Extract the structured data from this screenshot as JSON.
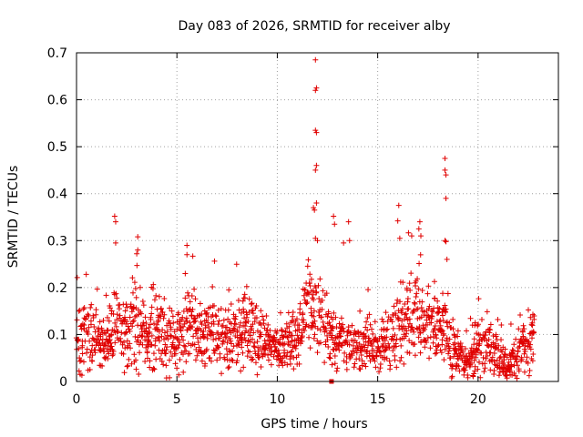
{
  "chart_data": {
    "type": "scatter",
    "title": "Day 083 of 2026, SRMTID for receiver alby",
    "xlabel": "GPS time / hours",
    "ylabel": "SRMTID / TECUs",
    "xlim": [
      0,
      24
    ],
    "ylim": [
      0,
      0.7
    ],
    "xticks": [
      0,
      5,
      10,
      15,
      20
    ],
    "xtick_labels": [
      "0",
      "5",
      "10",
      "15",
      "20"
    ],
    "yticks": [
      0,
      0.1,
      0.2,
      0.3,
      0.4,
      0.5,
      0.6,
      0.7
    ],
    "ytick_labels": [
      "0",
      "0.1",
      "0.2",
      "0.3",
      "0.4",
      "0.5",
      "0.6",
      "0.7"
    ],
    "grid": true,
    "legend": "none",
    "marker": "+",
    "color": "#e00000",
    "series": [
      {
        "name": "SRMTID",
        "profile_hours": [
          0,
          0.5,
          1,
          1.5,
          2,
          2.5,
          3,
          3.5,
          4,
          4.5,
          5,
          5.5,
          6,
          6.5,
          7,
          7.5,
          8,
          8.5,
          9,
          9.5,
          10,
          10.5,
          11,
          11.5,
          12,
          12.5,
          13,
          13.5,
          14,
          14.5,
          15,
          15.5,
          16,
          16.5,
          17,
          17.5,
          18,
          18.5,
          19,
          19.5,
          20,
          20.5,
          21,
          21.5,
          22,
          22.5,
          22.8
        ],
        "profile_median": [
          0.08,
          0.1,
          0.09,
          0.08,
          0.12,
          0.1,
          0.13,
          0.08,
          0.1,
          0.09,
          0.08,
          0.12,
          0.11,
          0.1,
          0.1,
          0.09,
          0.1,
          0.12,
          0.09,
          0.09,
          0.07,
          0.08,
          0.1,
          0.16,
          0.14,
          0.12,
          0.09,
          0.08,
          0.07,
          0.08,
          0.07,
          0.09,
          0.11,
          0.13,
          0.14,
          0.12,
          0.11,
          0.12,
          0.05,
          0.04,
          0.08,
          0.07,
          0.05,
          0.03,
          0.06,
          0.09,
          0.1
        ],
        "profile_spread": [
          0.04,
          0.05,
          0.04,
          0.03,
          0.06,
          0.04,
          0.06,
          0.03,
          0.05,
          0.04,
          0.04,
          0.06,
          0.04,
          0.04,
          0.04,
          0.04,
          0.04,
          0.05,
          0.04,
          0.03,
          0.03,
          0.03,
          0.04,
          0.06,
          0.06,
          0.05,
          0.04,
          0.03,
          0.03,
          0.04,
          0.03,
          0.04,
          0.05,
          0.06,
          0.06,
          0.05,
          0.04,
          0.06,
          0.03,
          0.02,
          0.04,
          0.04,
          0.03,
          0.02,
          0.03,
          0.04,
          0.04
        ],
        "spikes": [
          {
            "x": 1.9,
            "y": 0.352
          },
          {
            "x": 1.95,
            "y": 0.34
          },
          {
            "x": 1.95,
            "y": 0.295
          },
          {
            "x": 3.05,
            "y": 0.308
          },
          {
            "x": 3.05,
            "y": 0.28
          },
          {
            "x": 3.0,
            "y": 0.272
          },
          {
            "x": 5.5,
            "y": 0.29
          },
          {
            "x": 5.5,
            "y": 0.27
          },
          {
            "x": 11.9,
            "y": 0.685
          },
          {
            "x": 11.95,
            "y": 0.625
          },
          {
            "x": 11.9,
            "y": 0.62
          },
          {
            "x": 11.9,
            "y": 0.535
          },
          {
            "x": 11.95,
            "y": 0.53
          },
          {
            "x": 11.95,
            "y": 0.46
          },
          {
            "x": 11.9,
            "y": 0.45
          },
          {
            "x": 11.95,
            "y": 0.38
          },
          {
            "x": 11.8,
            "y": 0.37
          },
          {
            "x": 11.85,
            "y": 0.365
          },
          {
            "x": 11.9,
            "y": 0.305
          },
          {
            "x": 12.0,
            "y": 0.3
          },
          {
            "x": 12.8,
            "y": 0.352
          },
          {
            "x": 12.85,
            "y": 0.335
          },
          {
            "x": 13.55,
            "y": 0.34
          },
          {
            "x": 13.3,
            "y": 0.295
          },
          {
            "x": 13.6,
            "y": 0.3
          },
          {
            "x": 16.05,
            "y": 0.375
          },
          {
            "x": 16.0,
            "y": 0.342
          },
          {
            "x": 16.1,
            "y": 0.305
          },
          {
            "x": 17.1,
            "y": 0.34
          },
          {
            "x": 17.05,
            "y": 0.325
          },
          {
            "x": 17.15,
            "y": 0.31
          },
          {
            "x": 18.35,
            "y": 0.475
          },
          {
            "x": 18.35,
            "y": 0.45
          },
          {
            "x": 18.4,
            "y": 0.44
          },
          {
            "x": 18.4,
            "y": 0.39
          },
          {
            "x": 18.35,
            "y": 0.3
          },
          {
            "x": 18.4,
            "y": 0.298
          },
          {
            "x": 18.45,
            "y": 0.26
          }
        ],
        "square_marker": {
          "x": 12.7,
          "y": 0.0
        }
      }
    ]
  }
}
